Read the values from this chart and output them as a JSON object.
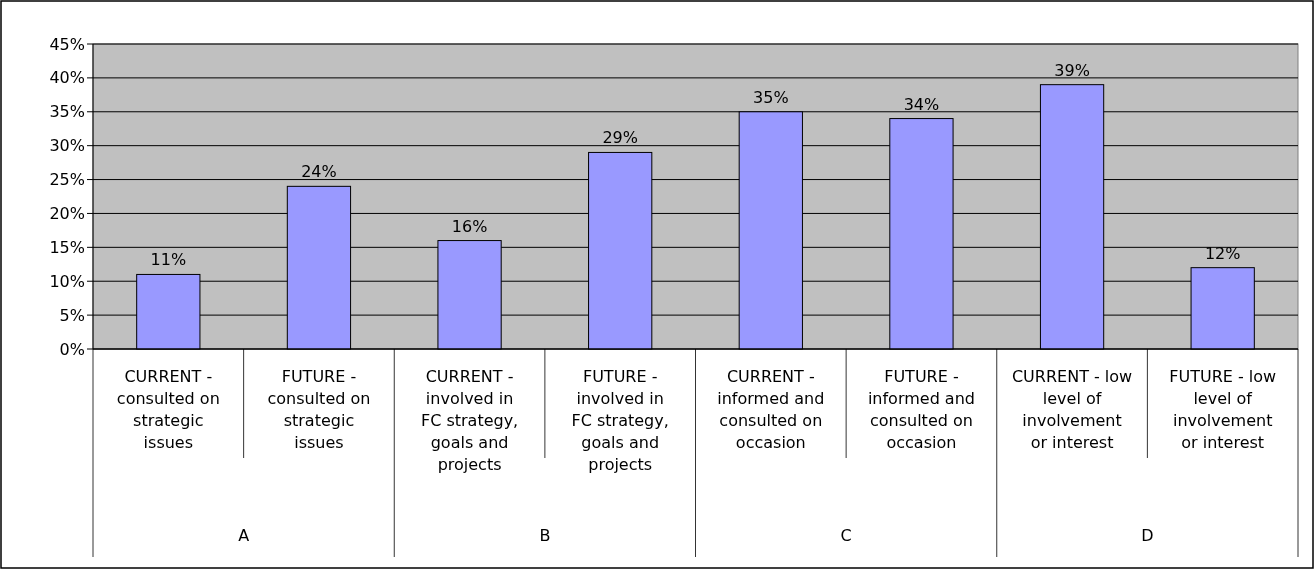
{
  "chart_data": {
    "type": "bar",
    "categories": [
      "CURRENT - consulted on strategic issues",
      "FUTURE - consulted on strategic issues",
      "CURRENT - involved in FC strategy, goals and projects",
      "FUTURE - involved in FC strategy, goals and projects",
      "CURRENT - informed and consulted on occasion",
      "FUTURE - informed and consulted on occasion",
      "CURRENT - low level of involvement or interest",
      "FUTURE - low level of involvement or interest"
    ],
    "values": [
      11,
      24,
      16,
      29,
      35,
      34,
      39,
      12
    ],
    "color": "#9999ff",
    "ylim": [
      0,
      45
    ],
    "yticks": [
      {
        "value": 0,
        "label": "0%"
      },
      {
        "value": 5,
        "label": "5%"
      },
      {
        "value": 10,
        "label": "10%"
      },
      {
        "value": 15,
        "label": "15%"
      },
      {
        "value": 20,
        "label": "20%"
      },
      {
        "value": 25,
        "label": "25%"
      },
      {
        "value": 30,
        "label": "30%"
      },
      {
        "value": 35,
        "label": "35%"
      },
      {
        "value": 40,
        "label": "40%"
      },
      {
        "value": 45,
        "label": "45%"
      }
    ],
    "value_labels": [
      "11%",
      "24%",
      "16%",
      "29%",
      "35%",
      "34%",
      "39%",
      "12%"
    ],
    "grid": "y",
    "annotations": [
      "A",
      "B",
      "C",
      "D"
    ]
  }
}
